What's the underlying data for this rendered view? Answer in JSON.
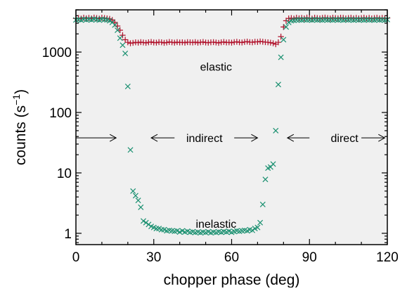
{
  "colors": {
    "plot_background": "#f0f0f0",
    "elastic": "#b0102a",
    "inelastic": "#1a9070",
    "frame": "#000000"
  },
  "chart_data": {
    "type": "scatter",
    "xlabel": "chopper phase  (deg)",
    "ylabel": "counts  (s",
    "ylabel_superscript": "−1",
    "ylabel_close": ")",
    "xlim": [
      0,
      120
    ],
    "ylim": [
      0.65,
      5000
    ],
    "yscale": "log",
    "x_ticks": [
      0,
      30,
      60,
      90,
      120
    ],
    "x_tick_labels": [
      "0",
      "30",
      "60",
      "90",
      "120"
    ],
    "y_ticks": [
      1,
      10,
      100,
      1000
    ],
    "y_tick_labels": [
      "1",
      "10",
      "100",
      "1000"
    ],
    "grid": false,
    "legend": "none",
    "annotations": [
      {
        "text": "elastic",
        "x": 54,
        "y": 580
      },
      {
        "text": "inelastic",
        "x": 54,
        "y": 1.45
      },
      {
        "text": "indirect",
        "x": 49.5,
        "y": 38
      },
      {
        "text": "direct",
        "x": 103.5,
        "y": 38
      }
    ],
    "arrows": [
      {
        "from": 0,
        "to": 15.5,
        "y": 38
      },
      {
        "from": 38,
        "to": 29,
        "y": 38
      },
      {
        "from": 61,
        "to": 70,
        "y": 38
      },
      {
        "from": 90,
        "to": 81.5,
        "y": 38
      },
      {
        "from": 110,
        "to": 119,
        "y": 38
      }
    ],
    "series": [
      {
        "marker": "plus",
        "color": "#b0102a",
        "points": [
          [
            0,
            3600
          ],
          [
            1,
            3650
          ],
          [
            2,
            3580
          ],
          [
            3,
            3700
          ],
          [
            4,
            3620
          ],
          [
            5,
            3680
          ],
          [
            6,
            3600
          ],
          [
            7,
            3720
          ],
          [
            8,
            3650
          ],
          [
            9,
            3580
          ],
          [
            10,
            3700
          ],
          [
            11,
            3650
          ],
          [
            12,
            3600
          ],
          [
            13,
            3550
          ],
          [
            14,
            3400
          ],
          [
            15,
            3100
          ],
          [
            16,
            2700
          ],
          [
            17,
            2300
          ],
          [
            18,
            1900
          ],
          [
            19,
            1600
          ],
          [
            20,
            1450
          ],
          [
            21,
            1400
          ],
          [
            22,
            1420
          ],
          [
            23,
            1450
          ],
          [
            24,
            1430
          ],
          [
            25,
            1460
          ],
          [
            26,
            1440
          ],
          [
            27,
            1420
          ],
          [
            28,
            1450
          ],
          [
            29,
            1470
          ],
          [
            30,
            1440
          ],
          [
            31,
            1430
          ],
          [
            32,
            1460
          ],
          [
            33,
            1450
          ],
          [
            34,
            1420
          ],
          [
            35,
            1440
          ],
          [
            36,
            1470
          ],
          [
            37,
            1450
          ],
          [
            38,
            1430
          ],
          [
            39,
            1460
          ],
          [
            40,
            1440
          ],
          [
            41,
            1450
          ],
          [
            42,
            1430
          ],
          [
            43,
            1460
          ],
          [
            44,
            1450
          ],
          [
            45,
            1440
          ],
          [
            46,
            1460
          ],
          [
            47,
            1430
          ],
          [
            48,
            1450
          ],
          [
            49,
            1470
          ],
          [
            50,
            1440
          ],
          [
            51,
            1430
          ],
          [
            52,
            1450
          ],
          [
            53,
            1460
          ],
          [
            54,
            1440
          ],
          [
            55,
            1420
          ],
          [
            56,
            1450
          ],
          [
            57,
            1470
          ],
          [
            58,
            1440
          ],
          [
            59,
            1450
          ],
          [
            60,
            1430
          ],
          [
            61,
            1460
          ],
          [
            62,
            1480
          ],
          [
            63,
            1450
          ],
          [
            64,
            1440
          ],
          [
            65,
            1470
          ],
          [
            66,
            1490
          ],
          [
            67,
            1460
          ],
          [
            68,
            1450
          ],
          [
            69,
            1480
          ],
          [
            70,
            1470
          ],
          [
            71,
            1500
          ],
          [
            72,
            1480
          ],
          [
            73,
            1460
          ],
          [
            74,
            1450
          ],
          [
            75,
            1430
          ],
          [
            76,
            1400
          ],
          [
            77,
            1350
          ],
          [
            78,
            1450
          ],
          [
            79,
            1800
          ],
          [
            80,
            2600
          ],
          [
            81,
            3300
          ],
          [
            82,
            3600
          ],
          [
            83,
            3650
          ],
          [
            84,
            3580
          ],
          [
            85,
            3700
          ],
          [
            86,
            3620
          ],
          [
            87,
            3680
          ],
          [
            88,
            3600
          ],
          [
            89,
            3720
          ],
          [
            90,
            3650
          ],
          [
            91,
            3580
          ],
          [
            92,
            3700
          ],
          [
            93,
            3650
          ],
          [
            94,
            3600
          ],
          [
            95,
            3680
          ],
          [
            96,
            3720
          ],
          [
            97,
            3650
          ],
          [
            98,
            3600
          ],
          [
            99,
            3700
          ],
          [
            100,
            3650
          ],
          [
            101,
            3620
          ],
          [
            102,
            3700
          ],
          [
            103,
            3680
          ],
          [
            104,
            3600
          ],
          [
            105,
            3650
          ],
          [
            106,
            3700
          ],
          [
            107,
            3620
          ],
          [
            108,
            3680
          ],
          [
            109,
            3600
          ],
          [
            110,
            3650
          ],
          [
            111,
            3700
          ],
          [
            112,
            3620
          ],
          [
            113,
            3680
          ],
          [
            114,
            3600
          ],
          [
            115,
            3650
          ],
          [
            116,
            3700
          ],
          [
            117,
            3620
          ],
          [
            118,
            3680
          ],
          [
            119,
            3600
          ],
          [
            120,
            3650
          ]
        ]
      },
      {
        "marker": "cross",
        "color": "#1a9070",
        "points": [
          [
            0,
            3400
          ],
          [
            1,
            3450
          ],
          [
            2,
            3380
          ],
          [
            3,
            3500
          ],
          [
            4,
            3420
          ],
          [
            5,
            3480
          ],
          [
            6,
            3400
          ],
          [
            7,
            3520
          ],
          [
            8,
            3450
          ],
          [
            9,
            3380
          ],
          [
            10,
            3500
          ],
          [
            11,
            3450
          ],
          [
            12,
            3400
          ],
          [
            13,
            3300
          ],
          [
            14,
            3100
          ],
          [
            15,
            2800
          ],
          [
            16,
            2300
          ],
          [
            17,
            1700
          ],
          [
            18,
            1300
          ],
          [
            19,
            950
          ],
          [
            20,
            270
          ],
          [
            21,
            24
          ],
          [
            22,
            5
          ],
          [
            23,
            4.2
          ],
          [
            24,
            3.5
          ],
          [
            25,
            2.7
          ],
          [
            26,
            1.6
          ],
          [
            27,
            1.5
          ],
          [
            28,
            1.4
          ],
          [
            29,
            1.3
          ],
          [
            30,
            1.25
          ],
          [
            31,
            1.2
          ],
          [
            32,
            1.2
          ],
          [
            33,
            1.15
          ],
          [
            34,
            1.15
          ],
          [
            35,
            1.1
          ],
          [
            36,
            1.12
          ],
          [
            37,
            1.1
          ],
          [
            38,
            1.08
          ],
          [
            39,
            1.1
          ],
          [
            40,
            1.05
          ],
          [
            41,
            1.1
          ],
          [
            42,
            1.05
          ],
          [
            43,
            1.08
          ],
          [
            44,
            1.04
          ],
          [
            45,
            1.06
          ],
          [
            46,
            1.03
          ],
          [
            47,
            1.05
          ],
          [
            48,
            1.02
          ],
          [
            49,
            1.05
          ],
          [
            50,
            1.03
          ],
          [
            51,
            1.06
          ],
          [
            52,
            1.02
          ],
          [
            53,
            1.05
          ],
          [
            54,
            1.03
          ],
          [
            55,
            1.06
          ],
          [
            56,
            1.04
          ],
          [
            57,
            1.07
          ],
          [
            58,
            1.05
          ],
          [
            59,
            1.08
          ],
          [
            60,
            1.04
          ],
          [
            61,
            1.07
          ],
          [
            62,
            1.1
          ],
          [
            63,
            1.08
          ],
          [
            64,
            1.1
          ],
          [
            65,
            1.12
          ],
          [
            66,
            1.1
          ],
          [
            67,
            1.15
          ],
          [
            68,
            1.12
          ],
          [
            69,
            1.2
          ],
          [
            70,
            1.25
          ],
          [
            71,
            1.5
          ],
          [
            72,
            3
          ],
          [
            73,
            7.8
          ],
          [
            74,
            12
          ],
          [
            75,
            12.5
          ],
          [
            76,
            14
          ],
          [
            77,
            50
          ],
          [
            78,
            290
          ],
          [
            79,
            820
          ],
          [
            80,
            1600
          ],
          [
            81,
            2600
          ],
          [
            82,
            3100
          ],
          [
            83,
            3300
          ],
          [
            84,
            3350
          ],
          [
            85,
            3400
          ],
          [
            86,
            3420
          ],
          [
            87,
            3380
          ],
          [
            88,
            3450
          ],
          [
            89,
            3400
          ],
          [
            90,
            3420
          ],
          [
            91,
            3380
          ],
          [
            92,
            3450
          ],
          [
            93,
            3400
          ],
          [
            94,
            3420
          ],
          [
            95,
            3380
          ],
          [
            96,
            3450
          ],
          [
            97,
            3400
          ],
          [
            98,
            3420
          ],
          [
            99,
            3380
          ],
          [
            100,
            3450
          ],
          [
            101,
            3400
          ],
          [
            102,
            3420
          ],
          [
            103,
            3380
          ],
          [
            104,
            3450
          ],
          [
            105,
            3400
          ],
          [
            106,
            3420
          ],
          [
            107,
            3380
          ],
          [
            108,
            3450
          ],
          [
            109,
            3400
          ],
          [
            110,
            3420
          ],
          [
            111,
            3380
          ],
          [
            112,
            3450
          ],
          [
            113,
            3400
          ],
          [
            114,
            3420
          ],
          [
            115,
            3380
          ],
          [
            116,
            3450
          ],
          [
            117,
            3400
          ],
          [
            118,
            3420
          ],
          [
            119,
            3380
          ],
          [
            120,
            3450
          ]
        ]
      }
    ]
  }
}
